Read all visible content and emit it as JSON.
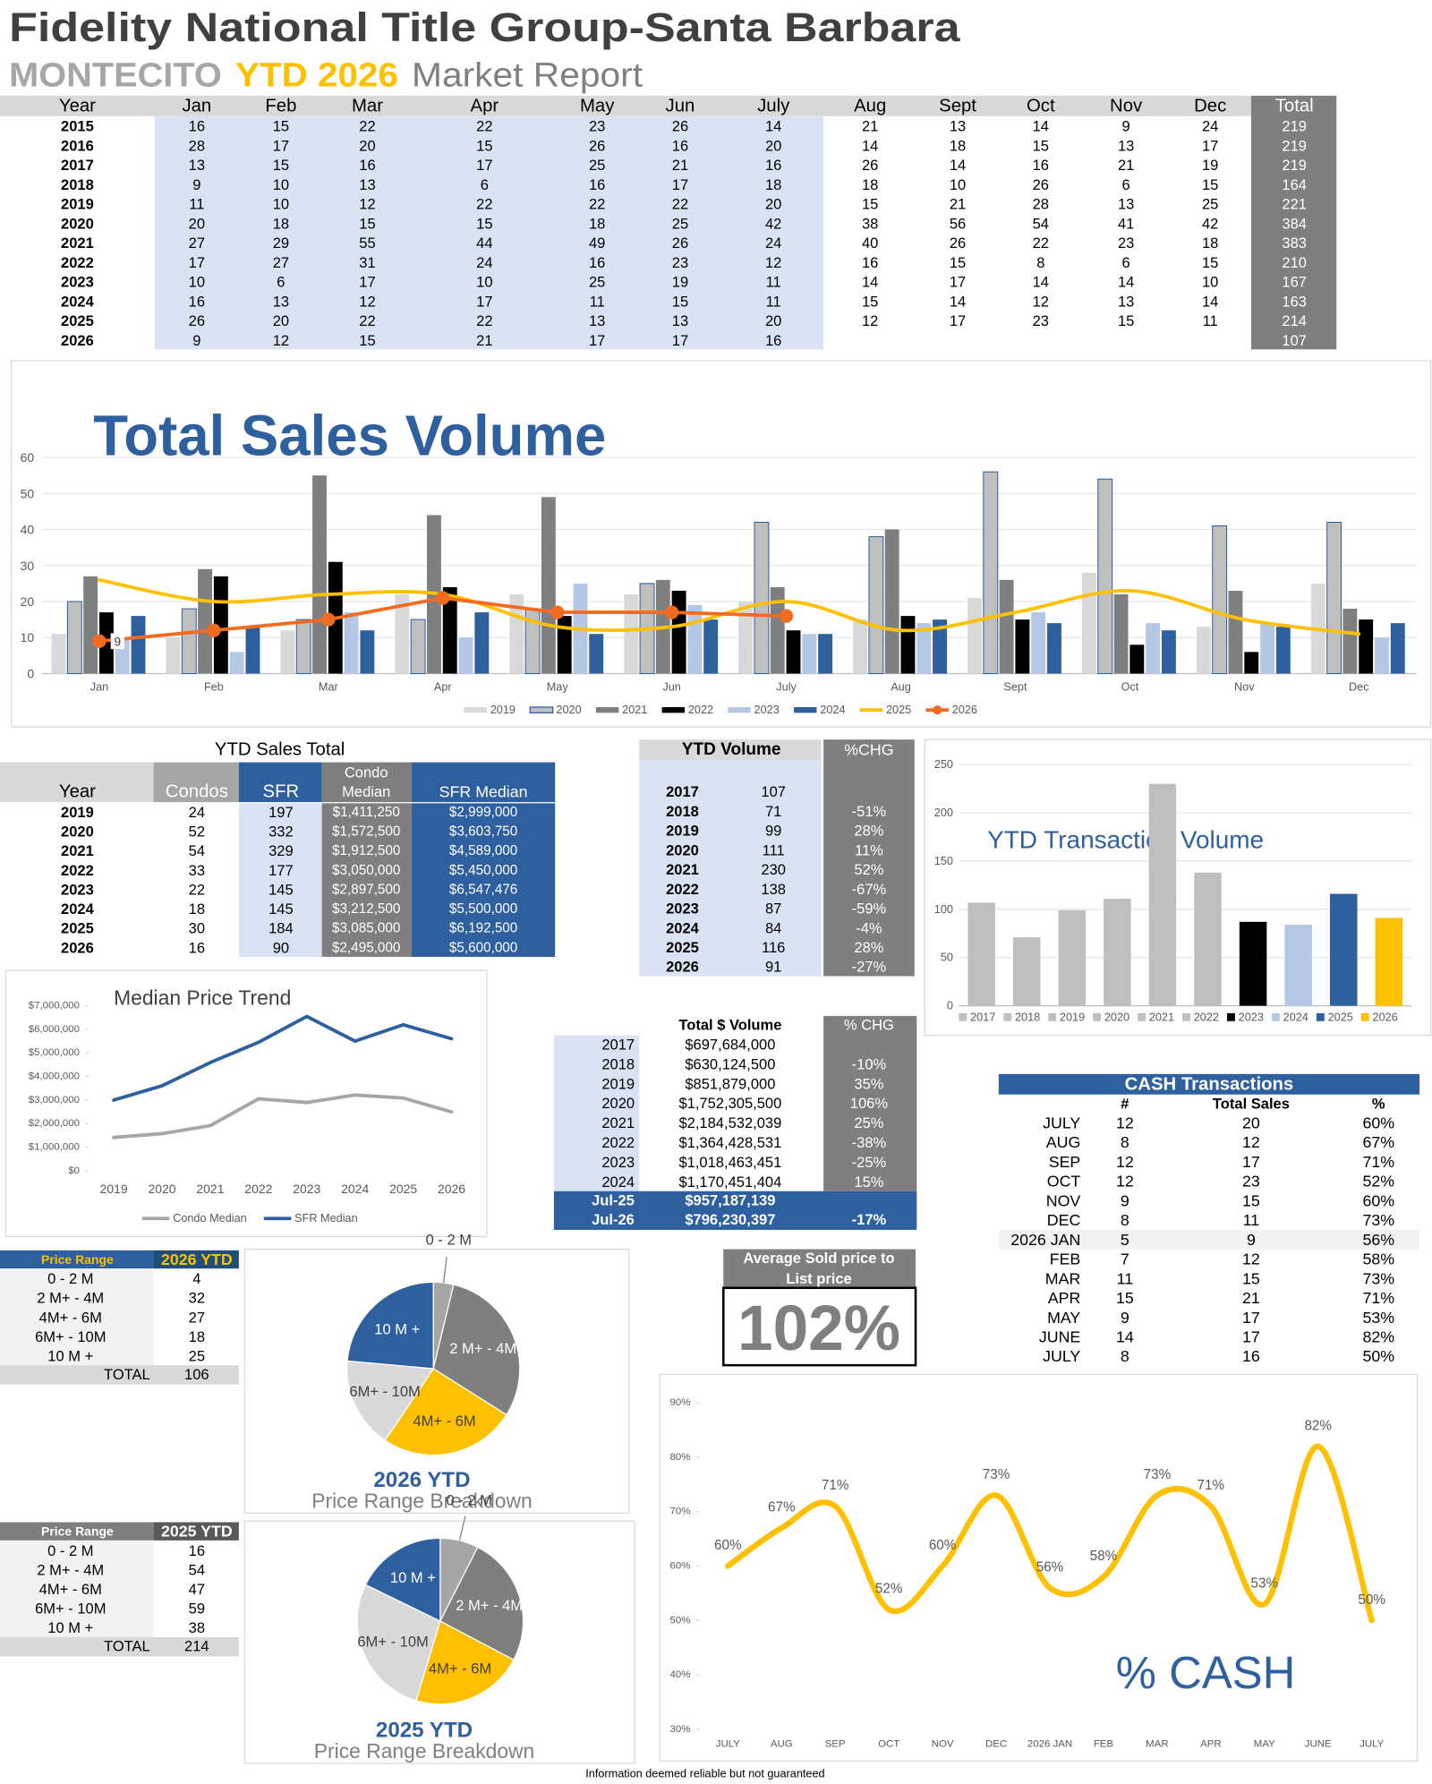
{
  "header": {
    "title": "Fidelity National Title Group-Santa Barbara",
    "subtitle": [
      "MONTECITO",
      "YTD 2026",
      "Market Report"
    ]
  },
  "monthly_table": {
    "columns": [
      "Year",
      "Jan",
      "Feb",
      "Mar",
      "Apr",
      "May",
      "Jun",
      "July",
      "Aug",
      "Sept",
      "Oct",
      "Nov",
      "Dec",
      "Total"
    ],
    "rows": [
      [
        2015,
        16,
        15,
        22,
        22,
        23,
        26,
        14,
        21,
        13,
        14,
        9,
        24,
        219
      ],
      [
        2016,
        28,
        17,
        20,
        15,
        26,
        16,
        20,
        14,
        18,
        15,
        13,
        17,
        219
      ],
      [
        2017,
        13,
        15,
        16,
        17,
        25,
        21,
        16,
        26,
        14,
        16,
        21,
        19,
        219
      ],
      [
        2018,
        9,
        10,
        13,
        6,
        16,
        17,
        18,
        18,
        10,
        26,
        6,
        15,
        164
      ],
      [
        2019,
        11,
        10,
        12,
        22,
        22,
        22,
        20,
        15,
        21,
        28,
        13,
        25,
        221
      ],
      [
        2020,
        20,
        18,
        15,
        15,
        18,
        25,
        42,
        38,
        56,
        54,
        41,
        42,
        384
      ],
      [
        2021,
        27,
        29,
        55,
        44,
        49,
        26,
        24,
        40,
        26,
        22,
        23,
        18,
        383
      ],
      [
        2022,
        17,
        27,
        31,
        24,
        16,
        23,
        12,
        16,
        15,
        8,
        6,
        15,
        210
      ],
      [
        2023,
        10,
        6,
        17,
        10,
        25,
        19,
        11,
        14,
        17,
        14,
        14,
        10,
        167
      ],
      [
        2024,
        16,
        13,
        12,
        17,
        11,
        15,
        11,
        15,
        14,
        12,
        13,
        14,
        163
      ],
      [
        2025,
        26,
        20,
        22,
        22,
        13,
        13,
        20,
        12,
        17,
        23,
        15,
        11,
        214
      ],
      [
        2026,
        9,
        12,
        15,
        21,
        17,
        17,
        16,
        null,
        null,
        null,
        null,
        null,
        107
      ]
    ]
  },
  "ytd_sales_table": {
    "title": "YTD Sales Total",
    "columns": [
      "Year",
      "Condos",
      "SFR",
      [
        "Condo",
        "Median"
      ],
      "SFR Median"
    ],
    "rows": [
      [
        2019,
        24,
        197,
        "$1,411,250",
        "$2,999,000"
      ],
      [
        2020,
        52,
        332,
        "$1,572,500",
        "$3,603,750"
      ],
      [
        2021,
        54,
        329,
        "$1,912,500",
        "$4,589,000"
      ],
      [
        2022,
        33,
        177,
        "$3,050,000",
        "$5,450,000"
      ],
      [
        2023,
        22,
        145,
        "$2,897,500",
        "$6,547,476"
      ],
      [
        2024,
        18,
        145,
        "$3,212,500",
        "$5,500,000"
      ],
      [
        2025,
        30,
        184,
        "$3,085,000",
        "$6,192,500"
      ],
      [
        2026,
        16,
        90,
        "$2,495,000",
        "$5,600,000"
      ]
    ]
  },
  "ytd_volume_table": {
    "columns": [
      "YTD Volume",
      "%CHG"
    ],
    "rows": [
      [
        2017,
        107
      ],
      [
        2018,
        71,
        "-51%"
      ],
      [
        2019,
        99,
        "28%"
      ],
      [
        2020,
        111,
        "11%"
      ],
      [
        2021,
        230,
        "52%"
      ],
      [
        2022,
        138,
        "-67%"
      ],
      [
        2023,
        87,
        "-59%"
      ],
      [
        2024,
        84,
        "-4%"
      ],
      [
        2025,
        116,
        "28%"
      ],
      [
        2026,
        91,
        "-27%"
      ]
    ]
  },
  "dollar_volume_table": {
    "columns": [
      "Total $ Volume",
      "% CHG"
    ],
    "rows": [
      [
        2017,
        "$697,684,000"
      ],
      [
        2018,
        "$630,124,500",
        "-10%"
      ],
      [
        2019,
        "$851,879,000",
        "35%"
      ],
      [
        2020,
        "$1,752,305,500",
        "106%"
      ],
      [
        2021,
        "$2,184,532,039",
        "25%"
      ],
      [
        2022,
        "$1,364,428,531",
        "-38%"
      ],
      [
        2023,
        "$1,018,463,451",
        "-25%"
      ],
      [
        2024,
        "$1,170,451,404",
        "15%"
      ],
      [
        "Jul-25",
        "$957,187,139"
      ],
      [
        "Jul-26",
        "$796,230,397",
        "-17%"
      ]
    ]
  },
  "cash_table": {
    "title": "CASH Transactions",
    "columns": [
      "#",
      "Total Sales",
      "%"
    ],
    "rows": [
      [
        "JULY",
        12,
        20,
        "60%"
      ],
      [
        "AUG",
        8,
        12,
        "67%"
      ],
      [
        "SEP",
        12,
        17,
        "71%"
      ],
      [
        "OCT",
        12,
        23,
        "52%"
      ],
      [
        "NOV",
        9,
        15,
        "60%"
      ],
      [
        "DEC",
        8,
        11,
        "73%"
      ],
      [
        "2026 JAN",
        5,
        9,
        "56%"
      ],
      [
        "FEB",
        7,
        12,
        "58%"
      ],
      [
        "MAR",
        11,
        15,
        "73%"
      ],
      [
        "APR",
        15,
        21,
        "71%"
      ],
      [
        "MAY",
        9,
        17,
        "53%"
      ],
      [
        "JUNE",
        14,
        17,
        "82%"
      ],
      [
        "JULY",
        8,
        16,
        "50%"
      ]
    ]
  },
  "avg_price": {
    "label": [
      "Average Sold price to",
      "List price"
    ],
    "value": "102%"
  },
  "price_range_2026": {
    "columns": [
      "Price Range",
      "2026 YTD"
    ],
    "rows": [
      [
        "0 - 2 M",
        4
      ],
      [
        "2 M+ - 4M",
        32
      ],
      [
        "4M+ - 6M",
        27
      ],
      [
        "6M+ - 10M",
        18
      ],
      [
        "10 M +",
        25
      ]
    ],
    "total": [
      "TOTAL",
      106
    ]
  },
  "price_range_2025": {
    "columns": [
      "Price Range",
      "2025 YTD"
    ],
    "rows": [
      [
        "0 - 2 M",
        16
      ],
      [
        "2 M+ - 4M",
        54
      ],
      [
        "4M+ - 6M",
        47
      ],
      [
        "6M+ - 10M",
        59
      ],
      [
        "10 M +",
        38
      ]
    ],
    "total": [
      "TOTAL",
      214
    ]
  },
  "footer": "Information deemed reliable but not guaranteed",
  "chart_data": [
    {
      "type": "bar",
      "title": "Total Sales Volume",
      "categories": [
        "Jan",
        "Feb",
        "Mar",
        "Apr",
        "May",
        "Jun",
        "July",
        "Aug",
        "Sept",
        "Oct",
        "Nov",
        "Dec"
      ],
      "series": [
        {
          "name": "2019",
          "color": "#d9d9d9",
          "values": [
            11,
            10,
            12,
            22,
            22,
            22,
            20,
            15,
            21,
            28,
            13,
            25
          ]
        },
        {
          "name": "2020",
          "color": "#bfbfbf",
          "edge_color": "#2e5f9e",
          "values": [
            20,
            18,
            15,
            15,
            18,
            25,
            42,
            38,
            56,
            54,
            41,
            42
          ]
        },
        {
          "name": "2021",
          "color": "#7f7f7f",
          "values": [
            27,
            29,
            55,
            44,
            49,
            26,
            24,
            40,
            26,
            22,
            23,
            18
          ]
        },
        {
          "name": "2022",
          "color": "#000000",
          "values": [
            17,
            27,
            31,
            24,
            16,
            23,
            12,
            16,
            15,
            8,
            6,
            15
          ]
        },
        {
          "name": "2023",
          "color": "#b4c7e7",
          "values": [
            10,
            6,
            17,
            10,
            25,
            19,
            11,
            14,
            17,
            14,
            14,
            10
          ]
        },
        {
          "name": "2024",
          "color": "#2e5f9e",
          "values": [
            16,
            13,
            12,
            17,
            11,
            15,
            11,
            15,
            14,
            12,
            13,
            14
          ]
        },
        {
          "name": "2025",
          "color": "#ffc000",
          "type": "line",
          "smooth": true,
          "values": [
            26,
            20,
            22,
            22,
            13,
            13,
            20,
            12,
            17,
            23,
            15,
            11
          ]
        },
        {
          "name": "2026",
          "color": "#f26b21",
          "type": "line",
          "markers": true,
          "labeled_points": [
            0
          ],
          "values": [
            9,
            12,
            15,
            21,
            17,
            17,
            16,
            null,
            null,
            null,
            null,
            null
          ]
        }
      ],
      "ylim": [
        0,
        60
      ],
      "yticks": [
        0,
        10,
        20,
        30,
        40,
        50,
        60
      ],
      "grid": true,
      "legend": "bottom"
    },
    {
      "type": "bar",
      "title": "YTD Transaction Volume",
      "categories": [
        "2017",
        "2018",
        "2019",
        "2020",
        "2021",
        "2022",
        "2023",
        "2024",
        "2025",
        "2026"
      ],
      "values": [
        107,
        71,
        99,
        111,
        230,
        138,
        87,
        84,
        116,
        91
      ],
      "colors": [
        "#bfbfbf",
        "#bfbfbf",
        "#bfbfbf",
        "#bfbfbf",
        "#bfbfbf",
        "#bfbfbf",
        "#000000",
        "#b4c7e7",
        "#2e5f9e",
        "#ffc000"
      ],
      "ylim": [
        0,
        250
      ],
      "yticks": [
        0,
        50,
        100,
        150,
        200,
        250
      ],
      "grid": true,
      "legend": "bottom"
    },
    {
      "type": "line",
      "title": "Median Price Trend",
      "categories": [
        "2019",
        "2020",
        "2021",
        "2022",
        "2023",
        "2024",
        "2025",
        "2026"
      ],
      "series": [
        {
          "name": "Condo Median",
          "color": "#a6a6a6",
          "values": [
            1411250,
            1572500,
            1912500,
            3050000,
            2897500,
            3212500,
            3085000,
            2495000
          ]
        },
        {
          "name": "SFR Median",
          "color": "#2e5f9e",
          "values": [
            2999000,
            3603750,
            4589000,
            5450000,
            6547476,
            5500000,
            6192500,
            5600000
          ]
        }
      ],
      "ylim": [
        0,
        7000000
      ],
      "yticks": [
        {
          "value": 0,
          "label": "$0"
        },
        {
          "value": 1000000,
          "label": "$1,000,000"
        },
        {
          "value": 2000000,
          "label": "$2,000,000"
        },
        {
          "value": 3000000,
          "label": "$3,000,000"
        },
        {
          "value": 4000000,
          "label": "$4,000,000"
        },
        {
          "value": 5000000,
          "label": "$5,000,000"
        },
        {
          "value": 6000000,
          "label": "$6,000,000"
        },
        {
          "value": 7000000,
          "label": "$7,000,000"
        }
      ],
      "legend": "bottom"
    },
    {
      "type": "pie",
      "title": "2026 YTD",
      "subtitle": "Price Range Breakdown",
      "categories": [
        "0 - 2 M",
        "2 M+ - 4M",
        "4M+ - 6M",
        "6M+ - 10M",
        "10 M +"
      ],
      "values": [
        4,
        32,
        27,
        18,
        25
      ],
      "colors": [
        "#a6a6a6",
        "#7f7f7f",
        "#ffc000",
        "#d9d9d9",
        "#2e5f9e"
      ]
    },
    {
      "type": "pie",
      "title": "2025 YTD",
      "subtitle": "Price Range Breakdown",
      "categories": [
        "0 - 2 M",
        "2 M+ - 4M",
        "4M+ - 6M",
        "6M+ - 10M",
        "10 M +"
      ],
      "values": [
        16,
        54,
        47,
        59,
        38
      ],
      "colors": [
        "#a6a6a6",
        "#7f7f7f",
        "#ffc000",
        "#d9d9d9",
        "#2e5f9e"
      ]
    },
    {
      "type": "line",
      "title": "% CASH",
      "categories": [
        "JULY",
        "AUG",
        "SEP",
        "OCT",
        "NOV",
        "DEC",
        "2026 JAN",
        "FEB",
        "MAR",
        "APR",
        "MAY",
        "JUNE",
        "JULY"
      ],
      "values": [
        60,
        67,
        71,
        52,
        60,
        73,
        56,
        58,
        73,
        71,
        53,
        82,
        50
      ],
      "value_labels": [
        "60%",
        "67%",
        "71%",
        "52%",
        "60%",
        "73%",
        "56%",
        "58%",
        "73%",
        "71%",
        "53%",
        "82%",
        "50%"
      ],
      "color": "#ffc000",
      "smooth": true,
      "ylim": [
        30,
        90
      ],
      "yticks": [
        {
          "value": 30,
          "label": "30%"
        },
        {
          "value": 40,
          "label": "40%"
        },
        {
          "value": 50,
          "label": "50%"
        },
        {
          "value": 60,
          "label": "60%"
        },
        {
          "value": 70,
          "label": "70%"
        },
        {
          "value": 80,
          "label": "80%"
        },
        {
          "value": 90,
          "label": "90%"
        }
      ]
    }
  ]
}
